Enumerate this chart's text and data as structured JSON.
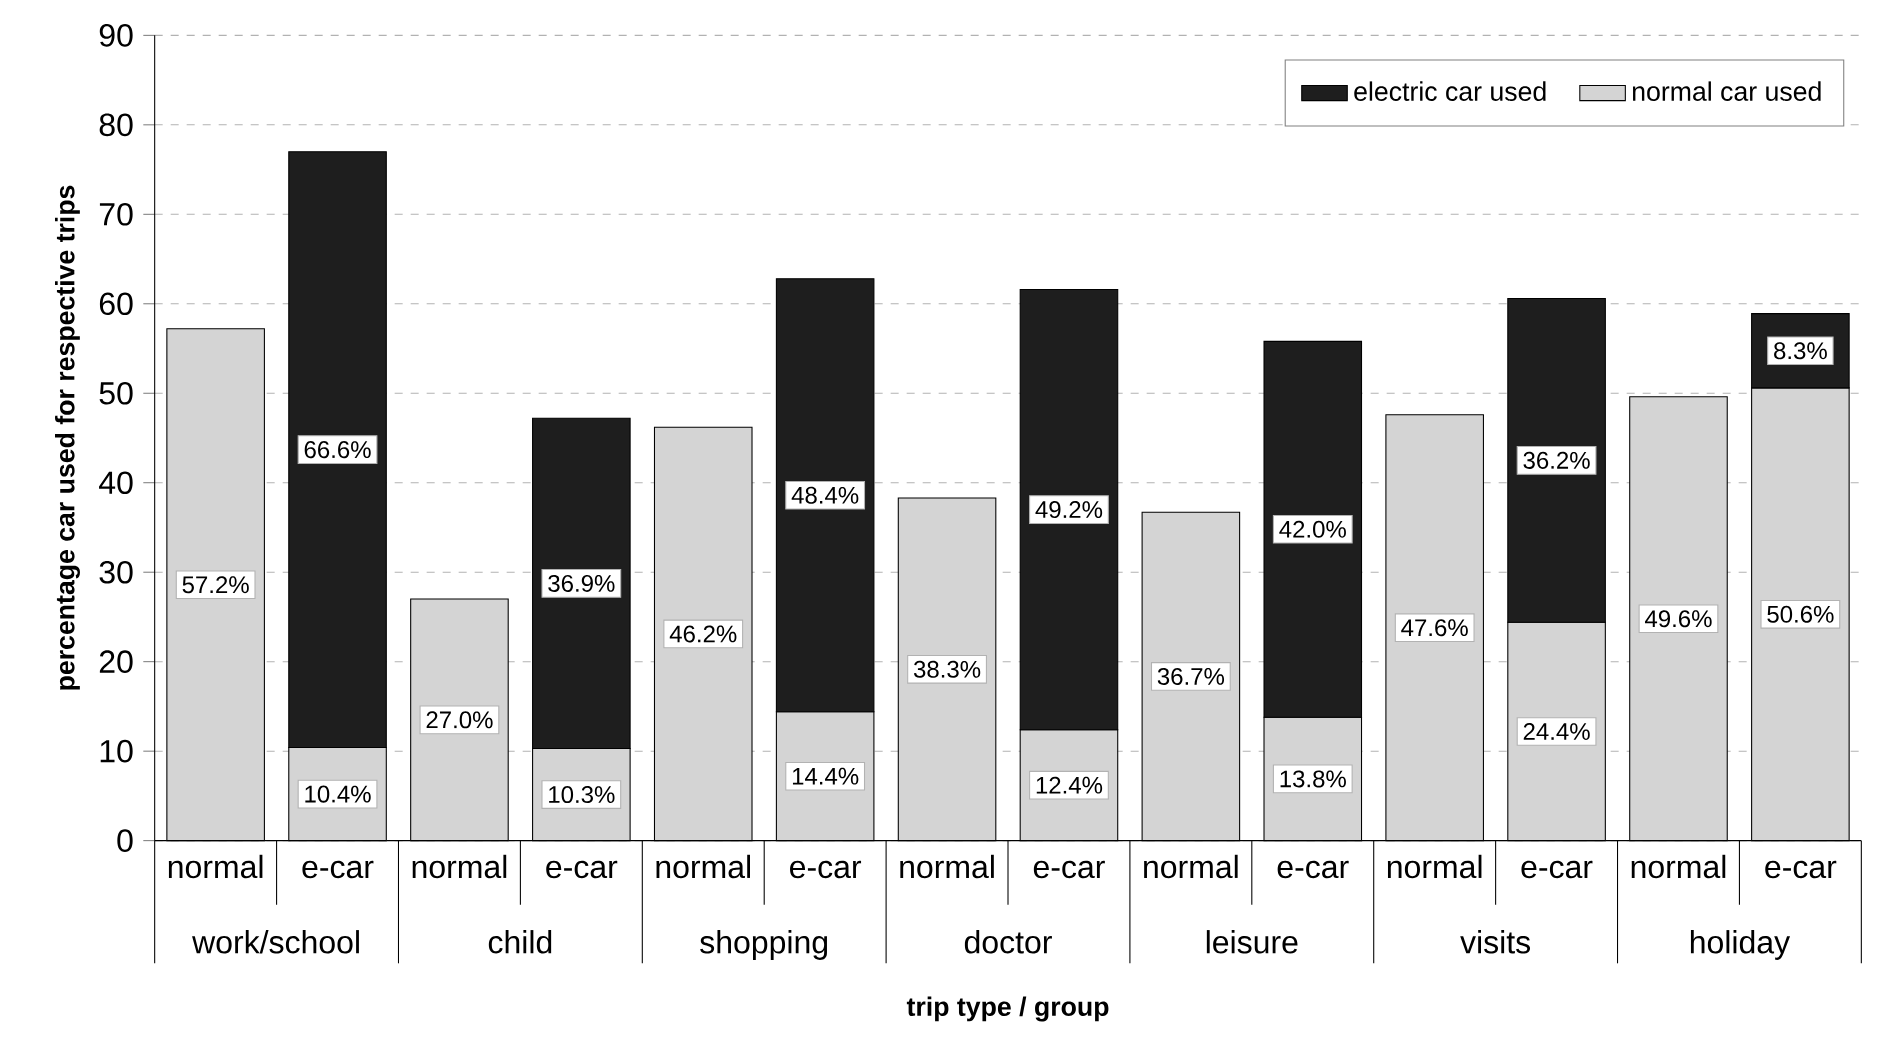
{
  "chart_data": {
    "type": "bar",
    "stacked": true,
    "xlabel": "trip type / group",
    "ylabel": "percentage car used for respective trips",
    "categories": [
      "normal",
      "e-car",
      "normal",
      "e-car",
      "normal",
      "e-car",
      "normal",
      "e-car",
      "normal",
      "e-car",
      "normal",
      "e-car",
      "normal",
      "e-car"
    ],
    "annotations": [
      "work/school",
      "child",
      "shopping",
      "doctor",
      "leisure",
      "visits",
      "holiday"
    ],
    "series": [
      {
        "name": "normal car used",
        "color": "#d4d4d4",
        "values": [
          57.2,
          10.4,
          27.0,
          10.3,
          46.2,
          14.4,
          38.3,
          12.4,
          36.7,
          13.8,
          47.6,
          24.4,
          49.6,
          50.6
        ],
        "value_labels": [
          "57.2%",
          "10.4%",
          "27.0%",
          "10.3%",
          "46.2%",
          "14.4%",
          "38.3%",
          "12.4%",
          "36.7%",
          "13.8%",
          "47.6%",
          "24.4%",
          "49.6%",
          "50.6%"
        ]
      },
      {
        "name": "electric car used",
        "color": "#1e1e1e",
        "values": [
          null,
          66.6,
          null,
          36.9,
          null,
          48.4,
          null,
          49.2,
          null,
          42.0,
          null,
          36.2,
          null,
          8.3
        ],
        "value_labels": [
          null,
          "66.6%",
          null,
          "36.9%",
          null,
          "48.4%",
          null,
          "49.2%",
          null,
          "42.0%",
          null,
          "36.2%",
          null,
          "8.3%"
        ]
      }
    ],
    "ylim": [
      0,
      90
    ],
    "yticks": [
      0,
      10,
      20,
      30,
      40,
      50,
      60,
      70,
      80,
      90
    ],
    "grid": "y",
    "legend": "top right"
  }
}
